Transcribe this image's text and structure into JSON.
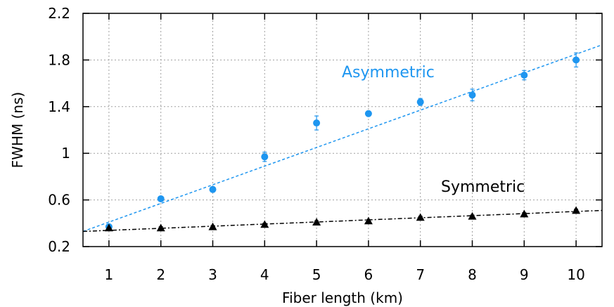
{
  "chart_data": {
    "type": "scatter",
    "title": "",
    "xlabel": "Fiber length (km)",
    "ylabel": "FWHM (ns)",
    "xlim": [
      0.5,
      10.5
    ],
    "ylim": [
      0.2,
      2.2
    ],
    "xticks": [
      "1",
      "2",
      "3",
      "4",
      "5",
      "6",
      "7",
      "8",
      "9",
      "10"
    ],
    "yticks": [
      "0.2",
      "0.6",
      "1",
      "1.4",
      "1.8",
      "2.2"
    ],
    "grid": true,
    "series": [
      {
        "name": "Asymmetric",
        "color": "#1e96f0",
        "marker": "circle",
        "x": [
          1,
          2,
          3,
          4,
          5,
          6,
          7,
          8,
          9,
          10
        ],
        "y": [
          0.37,
          0.61,
          0.69,
          0.97,
          1.26,
          1.34,
          1.44,
          1.5,
          1.67,
          1.8
        ],
        "yerr": [
          0.02,
          0.02,
          0.02,
          0.04,
          0.06,
          0.02,
          0.03,
          0.05,
          0.04,
          0.06
        ],
        "fit": {
          "x": [
            0.5,
            10.5
          ],
          "y": [
            0.33,
            1.93
          ]
        }
      },
      {
        "name": "Symmetric",
        "color": "#000000",
        "marker": "triangle",
        "x": [
          1,
          2,
          3,
          4,
          5,
          6,
          7,
          8,
          9,
          10
        ],
        "y": [
          0.36,
          0.36,
          0.37,
          0.39,
          0.41,
          0.42,
          0.45,
          0.46,
          0.48,
          0.51
        ],
        "yerr": [
          0.01,
          0.01,
          0.01,
          0.01,
          0.01,
          0.01,
          0.01,
          0.01,
          0.01,
          0.01
        ],
        "fit": {
          "x": [
            0.5,
            10.5
          ],
          "y": [
            0.33,
            0.51
          ]
        }
      }
    ]
  }
}
